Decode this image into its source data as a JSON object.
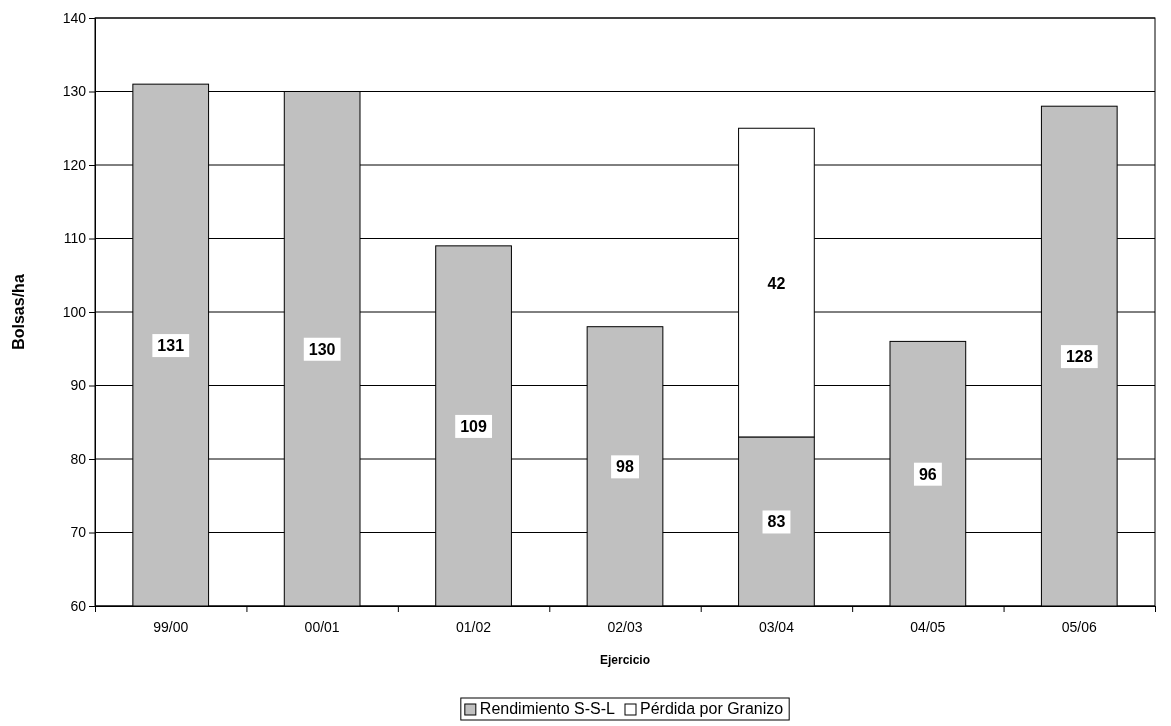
{
  "chart_data": {
    "type": "bar",
    "xlabel": "Ejercicio",
    "ylabel": "Bolsas/ha",
    "categories": [
      "99/00",
      "00/01",
      "01/02",
      "02/03",
      "03/04",
      "04/05",
      "05/06"
    ],
    "series": [
      {
        "name": "Rendimiento S-S-L",
        "color": "#c0c0c0",
        "values": [
          131,
          130,
          109,
          98,
          83,
          96,
          128
        ]
      },
      {
        "name": "Pérdida por Granizo",
        "color": "#ffffff",
        "values": [
          null,
          null,
          null,
          null,
          42,
          null,
          null
        ],
        "base": [
          null,
          null,
          null,
          null,
          83,
          null,
          null
        ]
      }
    ],
    "ylim": [
      60,
      140
    ],
    "yticks": [
      60,
      70,
      80,
      90,
      100,
      110,
      120,
      130,
      140
    ],
    "grid": "y",
    "legend": "bottom",
    "data_labels": true
  }
}
